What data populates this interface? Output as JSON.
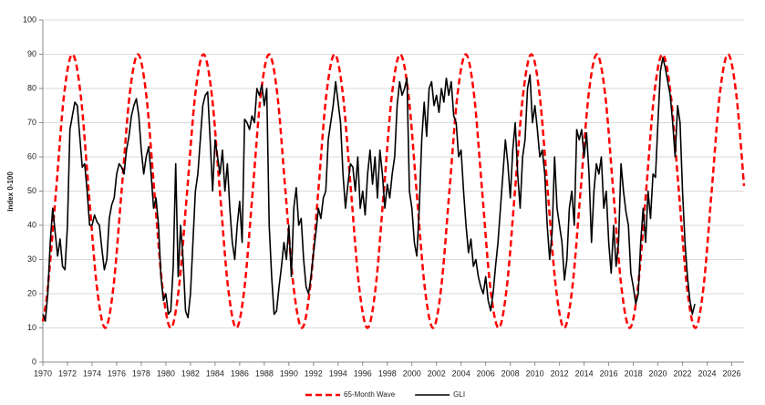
{
  "chart_data": {
    "type": "line",
    "y_label": "Index 0-100",
    "xlim": [
      1970,
      2027
    ],
    "xticks": [
      1970,
      1972,
      1974,
      1976,
      1978,
      1980,
      1982,
      1984,
      1986,
      1988,
      1990,
      1992,
      1994,
      1996,
      1998,
      2000,
      2002,
      2004,
      2006,
      2008,
      2010,
      2012,
      2014,
      2016,
      2018,
      2020,
      2022,
      2024,
      2026
    ],
    "ylim": [
      0,
      100
    ],
    "yticks": [
      0,
      10,
      20,
      30,
      40,
      50,
      60,
      70,
      80,
      90,
      100
    ],
    "grid": true,
    "legend": "bottom",
    "series": [
      {
        "name": "65-Month Wave",
        "color": "#ff0000",
        "dashed": true,
        "smooth": true,
        "x": [
          1970,
          1970.4,
          1971.07,
          1971.73,
          1972.4,
          1973.07,
          1973.73,
          1974.4,
          1975.07,
          1975.73,
          1976.4,
          1977.06,
          1977.73,
          1978.4,
          1979.06,
          1979.73,
          1980.4,
          1981.06,
          1981.73,
          1982.39,
          1983.06,
          1983.73,
          1984.39,
          1985.06,
          1985.73,
          1986.39,
          1987.06,
          1987.72,
          1988.39,
          1989.06,
          1989.72,
          1990.39,
          1991.06,
          1991.72,
          1992.39,
          1993.05,
          1993.72,
          1994.39,
          1995.05,
          1995.72,
          1996.39,
          1997.05,
          1997.72,
          1998.38,
          1999.05,
          1999.72,
          2000.38,
          2001.05,
          2001.72,
          2002.38,
          2003.05,
          2003.71,
          2004.38,
          2005.05,
          2005.71,
          2006.38,
          2007.05,
          2007.71,
          2008.38,
          2009.04,
          2009.71,
          2010.38,
          2011.04,
          2011.71,
          2012.38,
          2013.04,
          2013.71,
          2014.37,
          2015.04,
          2015.71,
          2016.37,
          2017.04,
          2017.71,
          2018.37,
          2019.04,
          2019.7,
          2020.37,
          2021.04,
          2021.7,
          2022.37,
          2023.04,
          2023.7,
          2024.37,
          2025.03,
          2025.7,
          2026.37,
          2027
        ],
        "values": [
          11.9,
          21.7,
          50,
          78.3,
          90,
          78.3,
          50,
          21.7,
          10,
          21.7,
          50,
          78.3,
          90,
          78.3,
          50,
          21.7,
          10,
          21.7,
          50,
          78.3,
          90,
          78.3,
          50,
          21.7,
          10,
          21.7,
          50,
          78.3,
          90,
          78.3,
          50,
          21.7,
          10,
          21.7,
          50,
          78.3,
          90,
          78.3,
          50,
          21.7,
          10,
          21.7,
          50,
          78.3,
          90,
          78.3,
          50,
          21.7,
          10,
          21.7,
          50,
          78.3,
          90,
          78.3,
          50,
          21.7,
          10,
          21.7,
          50,
          78.3,
          90,
          78.3,
          50,
          21.7,
          10,
          21.7,
          50,
          78.3,
          90,
          78.3,
          50,
          21.7,
          10,
          21.7,
          50,
          78.3,
          90,
          78.3,
          50,
          21.7,
          10,
          21.7,
          50,
          78.3,
          90,
          78.3,
          51.5
        ]
      },
      {
        "name": "GLI",
        "color": "#000000",
        "x": [
          1970,
          1970.2,
          1970.4,
          1970.6,
          1970.8,
          1971,
          1971.2,
          1971.4,
          1971.6,
          1971.8,
          1972,
          1972.2,
          1972.4,
          1972.6,
          1972.8,
          1973,
          1973.2,
          1973.4,
          1973.6,
          1973.8,
          1974,
          1974.2,
          1974.4,
          1974.6,
          1974.8,
          1975,
          1975.2,
          1975.4,
          1975.6,
          1975.8,
          1976,
          1976.2,
          1976.4,
          1976.6,
          1976.8,
          1977,
          1977.2,
          1977.4,
          1977.6,
          1977.8,
          1978,
          1978.2,
          1978.4,
          1978.6,
          1978.8,
          1979,
          1979.2,
          1979.4,
          1979.6,
          1979.8,
          1980,
          1980.2,
          1980.4,
          1980.6,
          1980.8,
          1981,
          1981.2,
          1981.4,
          1981.6,
          1981.8,
          1982,
          1982.2,
          1982.4,
          1982.6,
          1982.8,
          1983,
          1983.2,
          1983.4,
          1983.6,
          1983.8,
          1984,
          1984.2,
          1984.4,
          1984.6,
          1984.8,
          1985,
          1985.2,
          1985.4,
          1985.6,
          1985.8,
          1986,
          1986.2,
          1986.4,
          1986.6,
          1986.8,
          1987,
          1987.2,
          1987.4,
          1987.6,
          1987.8,
          1988,
          1988.2,
          1988.4,
          1988.6,
          1988.8,
          1989,
          1989.2,
          1989.4,
          1989.6,
          1989.8,
          1990,
          1990.2,
          1990.4,
          1990.6,
          1990.8,
          1991,
          1991.2,
          1991.4,
          1991.6,
          1991.8,
          1992,
          1992.2,
          1992.4,
          1992.6,
          1992.8,
          1993,
          1993.2,
          1993.4,
          1993.6,
          1993.8,
          1994,
          1994.2,
          1994.4,
          1994.6,
          1994.8,
          1995,
          1995.2,
          1995.4,
          1995.6,
          1995.8,
          1996,
          1996.2,
          1996.4,
          1996.6,
          1996.8,
          1997,
          1997.2,
          1997.4,
          1997.6,
          1997.8,
          1998,
          1998.2,
          1998.4,
          1998.6,
          1998.8,
          1999,
          1999.2,
          1999.4,
          1999.6,
          1999.8,
          2000,
          2000.2,
          2000.4,
          2000.6,
          2000.8,
          2001,
          2001.2,
          2001.4,
          2001.6,
          2001.8,
          2002,
          2002.2,
          2002.4,
          2002.6,
          2002.8,
          2003,
          2003.2,
          2003.4,
          2003.6,
          2003.8,
          2004,
          2004.2,
          2004.4,
          2004.6,
          2004.8,
          2005,
          2005.2,
          2005.4,
          2005.6,
          2005.8,
          2006,
          2006.2,
          2006.4,
          2006.6,
          2006.8,
          2007,
          2007.2,
          2007.4,
          2007.6,
          2007.8,
          2008,
          2008.2,
          2008.4,
          2008.6,
          2008.8,
          2009,
          2009.2,
          2009.4,
          2009.6,
          2009.8,
          2010,
          2010.2,
          2010.4,
          2010.6,
          2010.8,
          2011,
          2011.2,
          2011.4,
          2011.6,
          2011.8,
          2012,
          2012.2,
          2012.4,
          2012.6,
          2012.8,
          2013,
          2013.2,
          2013.4,
          2013.6,
          2013.8,
          2014,
          2014.2,
          2014.4,
          2014.6,
          2014.8,
          2015,
          2015.2,
          2015.4,
          2015.6,
          2015.8,
          2016,
          2016.2,
          2016.4,
          2016.6,
          2016.8,
          2017,
          2017.2,
          2017.4,
          2017.6,
          2017.8,
          2018,
          2018.2,
          2018.4,
          2018.6,
          2018.8,
          2019,
          2019.2,
          2019.4,
          2019.6,
          2019.8,
          2020,
          2020.2,
          2020.4,
          2020.6,
          2020.8,
          2021,
          2021.2,
          2021.4,
          2021.6,
          2021.8,
          2022,
          2022.2,
          2022.4,
          2022.6,
          2022.8,
          2023
        ],
        "values": [
          14,
          12,
          20,
          35,
          45,
          38,
          31,
          36,
          28,
          27,
          40,
          68,
          72,
          76,
          75,
          66,
          57,
          58,
          50,
          40,
          40,
          43,
          41,
          40,
          33,
          27,
          30,
          42,
          46,
          48,
          55,
          58,
          57,
          55,
          62,
          66,
          72,
          75,
          77,
          72,
          62,
          55,
          60,
          63,
          55,
          45,
          48,
          40,
          25,
          18,
          20,
          14,
          15,
          28,
          58,
          25,
          40,
          30,
          15,
          13,
          20,
          35,
          50,
          55,
          65,
          75,
          78,
          79,
          65,
          50,
          65,
          60,
          55,
          62,
          50,
          58,
          45,
          35,
          30,
          40,
          47,
          35,
          71,
          70,
          68,
          72,
          70,
          80,
          78,
          81,
          75,
          80,
          40,
          25,
          14,
          15,
          22,
          28,
          35,
          30,
          40,
          25,
          45,
          51,
          40,
          42,
          30,
          22,
          20,
          25,
          32,
          38,
          45,
          42,
          48,
          50,
          65,
          70,
          75,
          82,
          76,
          70,
          55,
          45,
          52,
          58,
          57,
          50,
          60,
          45,
          50,
          43,
          55,
          62,
          52,
          60,
          48,
          62,
          55,
          45,
          52,
          48,
          55,
          60,
          75,
          82,
          78,
          80,
          83,
          50,
          45,
          35,
          31,
          45,
          65,
          76,
          66,
          80,
          82,
          75,
          78,
          73,
          80,
          76,
          83,
          78,
          82,
          72,
          70,
          60,
          62,
          50,
          40,
          32,
          36,
          28,
          30,
          25,
          22,
          20,
          25,
          18,
          15,
          20,
          28,
          35,
          45,
          55,
          65,
          58,
          48,
          62,
          70,
          55,
          45,
          60,
          65,
          80,
          84,
          70,
          75,
          68,
          60,
          62,
          55,
          40,
          30,
          38,
          60,
          45,
          40,
          35,
          24,
          30,
          45,
          50,
          40,
          68,
          65,
          68,
          60,
          67,
          55,
          35,
          50,
          58,
          55,
          60,
          45,
          50,
          35,
          26,
          40,
          28,
          35,
          58,
          50,
          44,
          40,
          26,
          22,
          17,
          20,
          35,
          45,
          35,
          50,
          42,
          55,
          54,
          70,
          85,
          89,
          86,
          82,
          78,
          70,
          60,
          75,
          70,
          50,
          35,
          25,
          18,
          14,
          17
        ]
      }
    ]
  }
}
